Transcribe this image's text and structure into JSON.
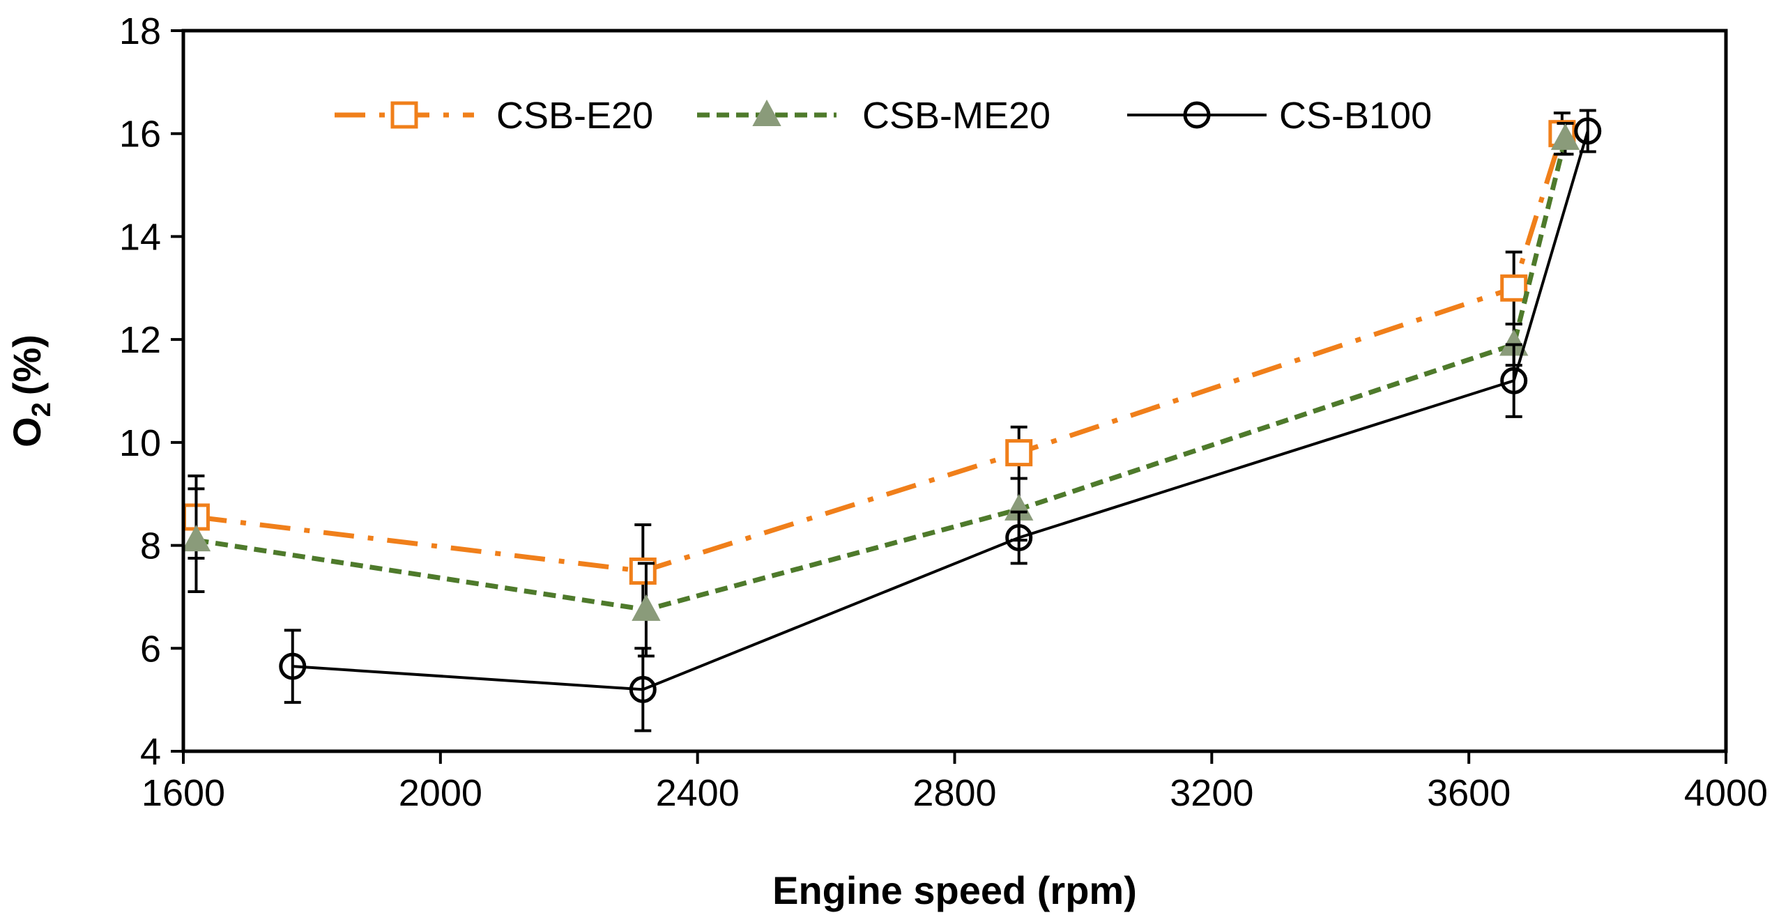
{
  "chart_data": {
    "type": "line",
    "title": "",
    "xlabel": "Engine speed (rpm)",
    "ylabel_main": "O",
    "ylabel_sub": "2",
    "ylabel_unit": "(%)",
    "xlim": [
      1600,
      4000
    ],
    "ylim": [
      4,
      18
    ],
    "x_ticks": [
      1600,
      2000,
      2400,
      2800,
      3200,
      3600,
      4000
    ],
    "y_ticks": [
      4,
      6,
      8,
      10,
      12,
      14,
      16,
      18
    ],
    "grid": false,
    "legend_position": "top-center",
    "series": [
      {
        "name": "CSB-E20",
        "color": "#F07F1A",
        "line_style": "dash-dot",
        "marker": "square-open",
        "x": [
          1620,
          2315,
          2900,
          3670,
          3745
        ],
        "y": [
          8.55,
          7.5,
          9.8,
          13.0,
          16.0
        ],
        "err": [
          0.8,
          0.9,
          0.5,
          0.7,
          0.4
        ]
      },
      {
        "name": "CSB-ME20",
        "color": "#4E7A2B",
        "marker_color": "#8A9B7A",
        "line_style": "dash",
        "marker": "triangle-filled",
        "x": [
          1620,
          2320,
          2900,
          3670,
          3750
        ],
        "y": [
          8.1,
          6.75,
          8.7,
          11.9,
          15.9
        ],
        "err": [
          1.0,
          0.9,
          0.6,
          0.4,
          0.3
        ]
      },
      {
        "name": "CS-B100",
        "color": "#000000",
        "line_style": "solid",
        "marker": "circle-open",
        "x": [
          1770,
          2315,
          2900,
          3670,
          3785
        ],
        "y": [
          5.65,
          5.2,
          8.15,
          11.2,
          16.05
        ],
        "err": [
          0.7,
          0.8,
          0.5,
          0.7,
          0.4
        ]
      }
    ]
  }
}
